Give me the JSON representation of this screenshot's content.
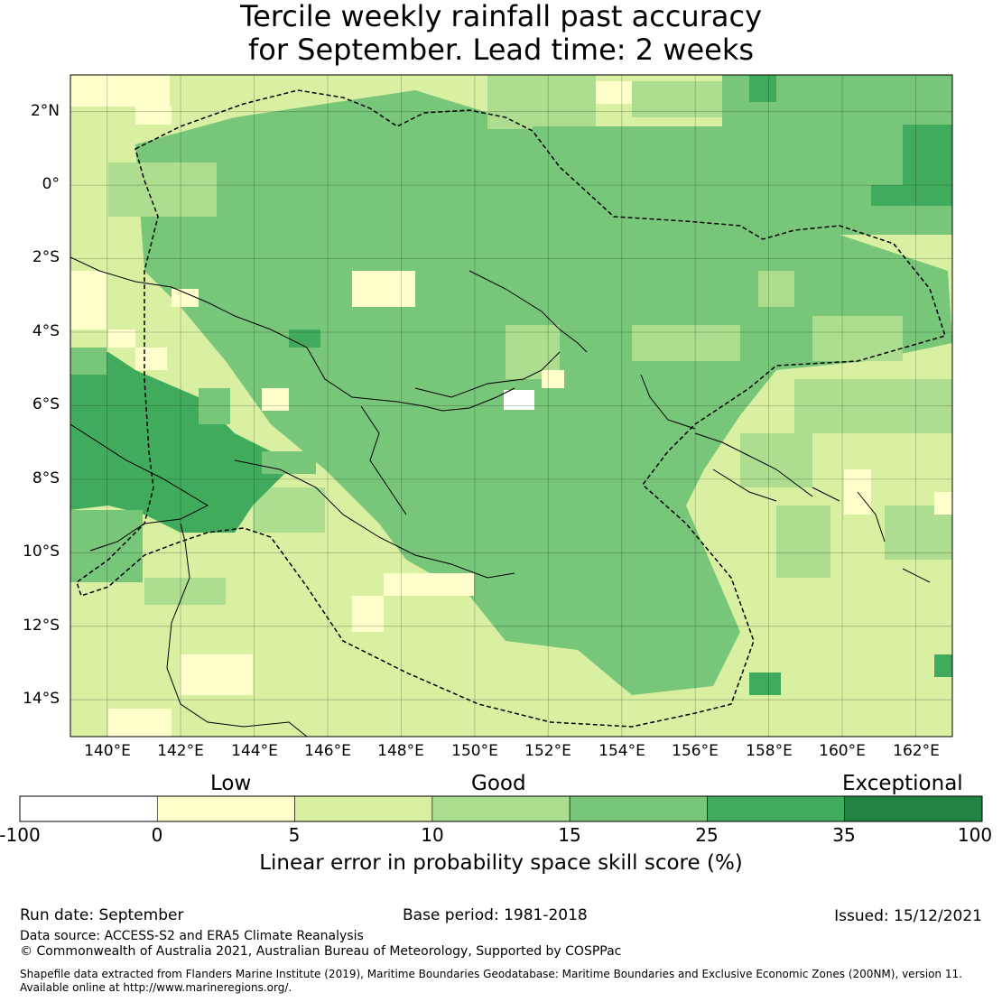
{
  "title": {
    "line1": "Tercile weekly rainfall past accuracy",
    "line2": "for September. Lead time: 2 weeks"
  },
  "map": {
    "lon_range": [
      139,
      163
    ],
    "lat_range": [
      -15,
      3
    ],
    "lat_ticks": [
      "2°N",
      "0°",
      "2°S",
      "4°S",
      "6°S",
      "8°S",
      "10°S",
      "12°S",
      "14°S"
    ],
    "lon_ticks": [
      "140°E",
      "142°E",
      "144°E",
      "146°E",
      "148°E",
      "150°E",
      "152°E",
      "154°E",
      "156°E",
      "158°E",
      "160°E",
      "162°E"
    ],
    "legend_colors": {
      "white": "#ffffff",
      "low": "#ffffcc",
      "light": "#d9f0a3",
      "medium": "#addd8e",
      "good": "#78c679",
      "high": "#41ab5d",
      "exceptional": "#238443"
    }
  },
  "colorbar": {
    "categories": [
      "Low",
      "Good",
      "Exceptional"
    ],
    "tick_labels": [
      "-100",
      "0",
      "5",
      "10",
      "15",
      "25",
      "35",
      "100"
    ],
    "colors": [
      "#ffffff",
      "#ffffcc",
      "#d9f0a3",
      "#addd8e",
      "#78c679",
      "#41ab5d",
      "#238443"
    ],
    "label": "Linear error in probability space skill score (%)"
  },
  "footer": {
    "run_date": "Run date: September",
    "base_period": "Base period: 1981-2018",
    "issued": "Issued: 15/12/2021",
    "data_source": "Data source: ACCESS-S2 and ERA5 Climate Reanalysis",
    "copyright": "© Commonwealth of Australia 2021, Australian Bureau of Meteorology, Supported by COSPPac",
    "shapefile_line1": "Shapefile data extracted from Flanders Marine Institute (2019), Maritime Boundaries Geodatabase: Maritime Boundaries and Exclusive Economic Zones (200NM), version 11.",
    "shapefile_line2": "Available online at http://www.marineregions.org/."
  }
}
